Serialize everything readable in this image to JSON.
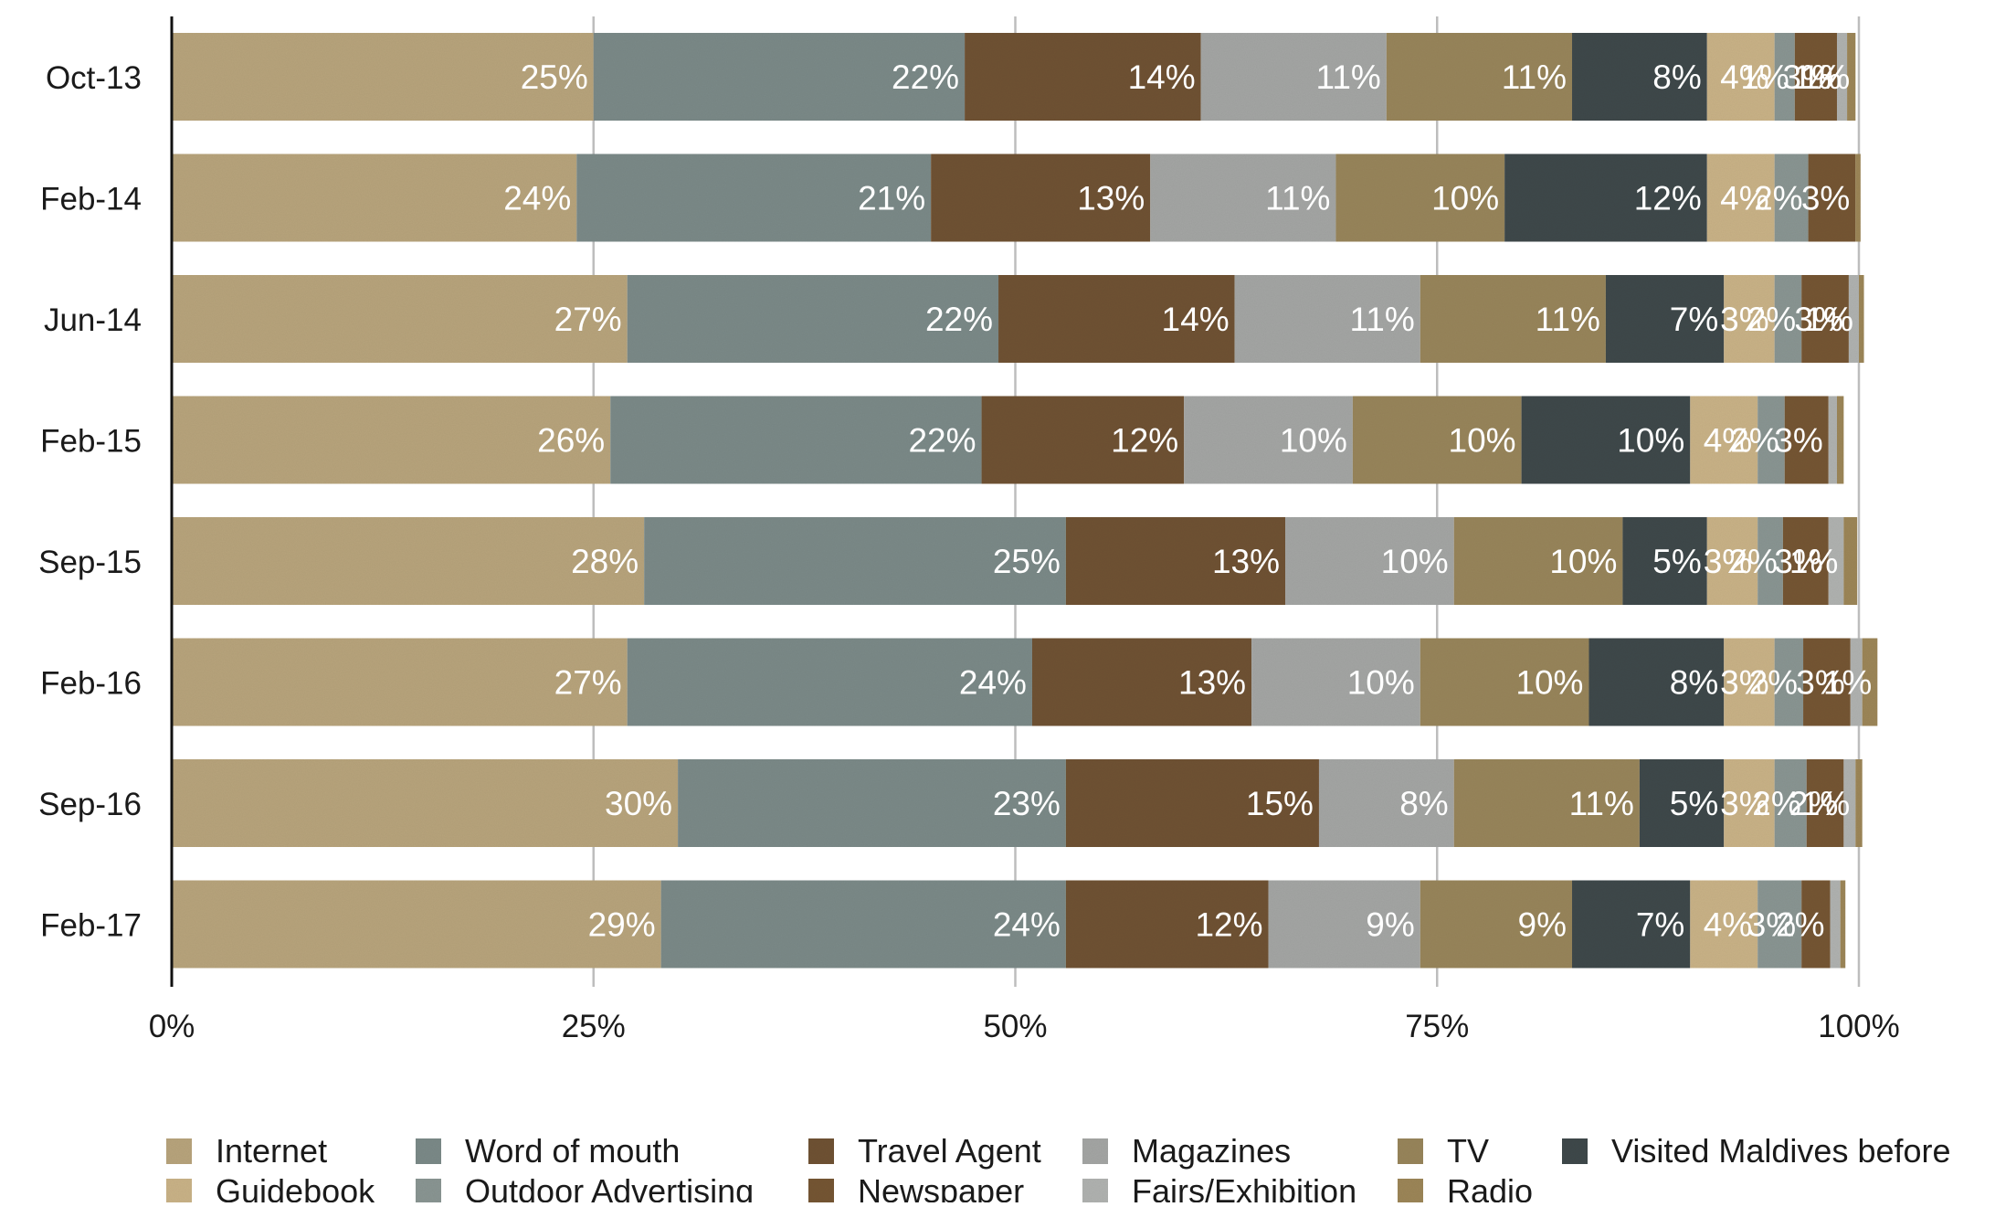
{
  "chart_data": {
    "type": "bar",
    "orientation": "horizontal",
    "stacked": true,
    "normalized": true,
    "title": "",
    "xlabel": "",
    "ylabel": "",
    "xlim": [
      0,
      100
    ],
    "x_ticks": [
      "0%",
      "25%",
      "50%",
      "75%",
      "100%"
    ],
    "x_tick_values": [
      0,
      25,
      50,
      75,
      100
    ],
    "grid": true,
    "legend_position": "bottom",
    "categories": [
      "Oct-13",
      "Feb-14",
      "Jun-14",
      "Feb-15",
      "Sep-15",
      "Feb-16",
      "Sep-16",
      "Feb-17"
    ],
    "series": [
      {
        "name": "Internet",
        "color": "#b8a47d",
        "values": [
          25,
          24,
          27,
          26,
          28,
          27,
          30,
          29
        ],
        "labels": [
          "25%",
          "24%",
          "27%",
          "26%",
          "28%",
          "27%",
          "30%",
          "29%"
        ]
      },
      {
        "name": "Word of mouth",
        "color": "#7c8a88",
        "values": [
          22,
          21,
          22,
          22,
          25,
          24,
          23,
          24
        ],
        "labels": [
          "22%",
          "21%",
          "22%",
          "22%",
          "25%",
          "24%",
          "23%",
          "24%"
        ]
      },
      {
        "name": "Travel Agent",
        "color": "#6f5236",
        "values": [
          14,
          13,
          14,
          12,
          13,
          13,
          15,
          12
        ],
        "labels": [
          "14%",
          "13%",
          "14%",
          "12%",
          "13%",
          "13%",
          "15%",
          "12%"
        ]
      },
      {
        "name": "Magazines",
        "color": "#a4a6a4",
        "values": [
          11,
          11,
          11,
          10,
          10,
          10,
          8,
          9
        ],
        "labels": [
          "11%",
          "11%",
          "11%",
          "10%",
          "10%",
          "10%",
          "8%",
          "9%"
        ]
      },
      {
        "name": "TV",
        "color": "#98855c",
        "values": [
          11,
          10,
          11,
          10,
          10,
          10,
          11,
          9
        ],
        "labels": [
          "11%",
          "10%",
          "11%",
          "10%",
          "10%",
          "10%",
          "11%",
          "9%"
        ]
      },
      {
        "name": "Visited Maldives before",
        "color": "#414a4c",
        "values": [
          8,
          12,
          7,
          10,
          5,
          8,
          5,
          7
        ],
        "labels": [
          "8%",
          "12%",
          "7%",
          "10%",
          "5%",
          "8%",
          "5%",
          "7%"
        ]
      },
      {
        "name": "Guidebook",
        "color": "#c9b287",
        "values": [
          4,
          4,
          3,
          4,
          3,
          3,
          3,
          4
        ],
        "labels": [
          "4%",
          "4%",
          "3%",
          "4%",
          "3%",
          "3%",
          "3%",
          "4%"
        ]
      },
      {
        "name": "Outdoor Advertising",
        "color": "#8a9593",
        "values": [
          1.2,
          2,
          1.6,
          1.6,
          1.5,
          1.7,
          1.9,
          2.6
        ],
        "labels": [
          "1%",
          "2%",
          "2%",
          "2%",
          "2%",
          "2%",
          "2%",
          "3%"
        ]
      },
      {
        "name": "Newspaper",
        "color": "#765634",
        "values": [
          2.5,
          2.8,
          2.8,
          2.6,
          2.7,
          2.8,
          2.2,
          1.7
        ],
        "labels": [
          "3%",
          "3%",
          "3%",
          "3%",
          "3%",
          "3%",
          "2%",
          "2%"
        ]
      },
      {
        "name": "Fairs/Exhibition",
        "color": "#b0b2b0",
        "values": [
          0.6,
          0,
          0.6,
          0.5,
          0.9,
          0.7,
          0.7,
          0.6
        ],
        "labels": [
          "1%",
          "",
          "1%",
          "",
          "1%",
          "",
          "1%",
          ""
        ]
      },
      {
        "name": "Radio",
        "color": "#9c8659",
        "values": [
          0.5,
          0.3,
          0.3,
          0.4,
          0.8,
          0.9,
          0.4,
          0.3
        ],
        "labels": [
          "1%",
          "",
          "",
          "",
          "",
          "1%",
          "",
          ""
        ]
      }
    ]
  },
  "legend": {
    "items": [
      {
        "label": "Internet",
        "color": "#b8a47d"
      },
      {
        "label": "Guidebook",
        "color": "#c9b287"
      },
      {
        "label": "Word of mouth",
        "color": "#7c8a88"
      },
      {
        "label": "Outdoor Advertising",
        "color": "#8a9593"
      },
      {
        "label": "Travel Agent",
        "color": "#6f5236"
      },
      {
        "label": "Newspaper",
        "color": "#765634"
      },
      {
        "label": "Magazines",
        "color": "#a4a6a4"
      },
      {
        "label": "Fairs/Exhibition",
        "color": "#b0b2b0"
      },
      {
        "label": "TV",
        "color": "#98855c"
      },
      {
        "label": "Radio",
        "color": "#9c8659"
      },
      {
        "label": "Visited Maldives before",
        "color": "#414a4c"
      }
    ]
  }
}
